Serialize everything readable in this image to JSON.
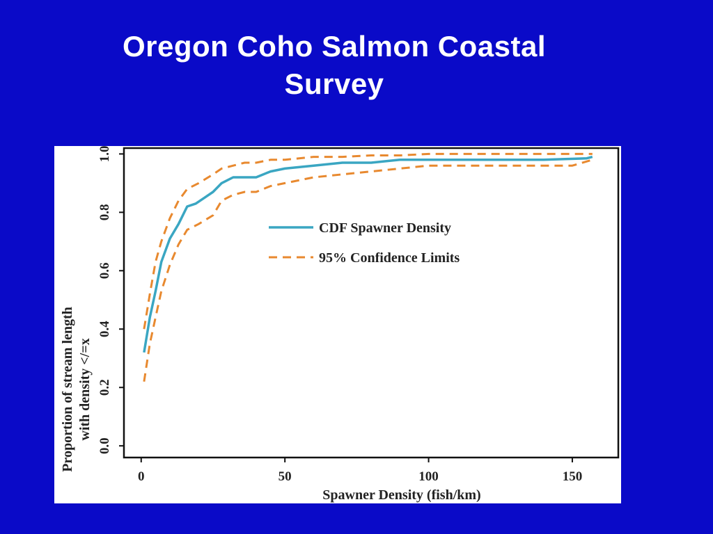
{
  "slide": {
    "title_line1": "Oregon Coho Salmon Coastal",
    "title_line2": "Survey"
  },
  "colors": {
    "background": "#0a0ac8",
    "cdf": "#3aa6c2",
    "ci": "#e8892f",
    "axis": "#111111"
  },
  "chart_data": {
    "type": "line",
    "xlabel": "Spawner Density (fish/km)",
    "ylabel": "Proportion of stream length with density </=x",
    "ylabel_lines": [
      "Proportion of stream length",
      "with density </=x"
    ],
    "xlim": [
      -6,
      166
    ],
    "ylim": [
      -0.04,
      1.02
    ],
    "xticks": [
      0,
      50,
      100,
      150
    ],
    "yticks": [
      0.0,
      0.2,
      0.4,
      0.6,
      0.8,
      1.0
    ],
    "ytick_labels": [
      "0.0",
      "0.2",
      "0.4",
      "0.6",
      "0.8",
      "1.0"
    ],
    "legend": {
      "position": "center-right"
    },
    "series": [
      {
        "name": "CDF Spawner Density",
        "style": "solid",
        "x": [
          1,
          3,
          5,
          7,
          10,
          13,
          16,
          19,
          22,
          25,
          28,
          32,
          36,
          40,
          45,
          50,
          60,
          70,
          80,
          90,
          100,
          120,
          140,
          155,
          157
        ],
        "y": [
          0.32,
          0.44,
          0.53,
          0.63,
          0.71,
          0.76,
          0.82,
          0.83,
          0.85,
          0.87,
          0.9,
          0.92,
          0.92,
          0.92,
          0.94,
          0.95,
          0.96,
          0.97,
          0.97,
          0.98,
          0.98,
          0.98,
          0.98,
          0.985,
          0.99
        ]
      },
      {
        "name": "95% Confidence Limits",
        "style": "dashed",
        "x": [
          1,
          3,
          5,
          7,
          10,
          13,
          16,
          20,
          25,
          28,
          32,
          36,
          40,
          45,
          50,
          60,
          70,
          80,
          90,
          100,
          120,
          140,
          157
        ],
        "y": [
          0.4,
          0.52,
          0.63,
          0.7,
          0.78,
          0.84,
          0.88,
          0.9,
          0.93,
          0.95,
          0.96,
          0.97,
          0.97,
          0.98,
          0.98,
          0.99,
          0.99,
          0.995,
          0.995,
          1.0,
          1.0,
          1.0,
          1.0
        ]
      },
      {
        "style": "dashed",
        "x": [
          1,
          3,
          5,
          7,
          10,
          13,
          16,
          20,
          25,
          28,
          32,
          36,
          40,
          45,
          50,
          60,
          70,
          80,
          90,
          100,
          120,
          140,
          150,
          157
        ],
        "y": [
          0.22,
          0.35,
          0.44,
          0.53,
          0.62,
          0.69,
          0.74,
          0.76,
          0.79,
          0.84,
          0.86,
          0.87,
          0.87,
          0.89,
          0.9,
          0.92,
          0.93,
          0.94,
          0.95,
          0.96,
          0.96,
          0.96,
          0.96,
          0.98
        ]
      }
    ]
  }
}
